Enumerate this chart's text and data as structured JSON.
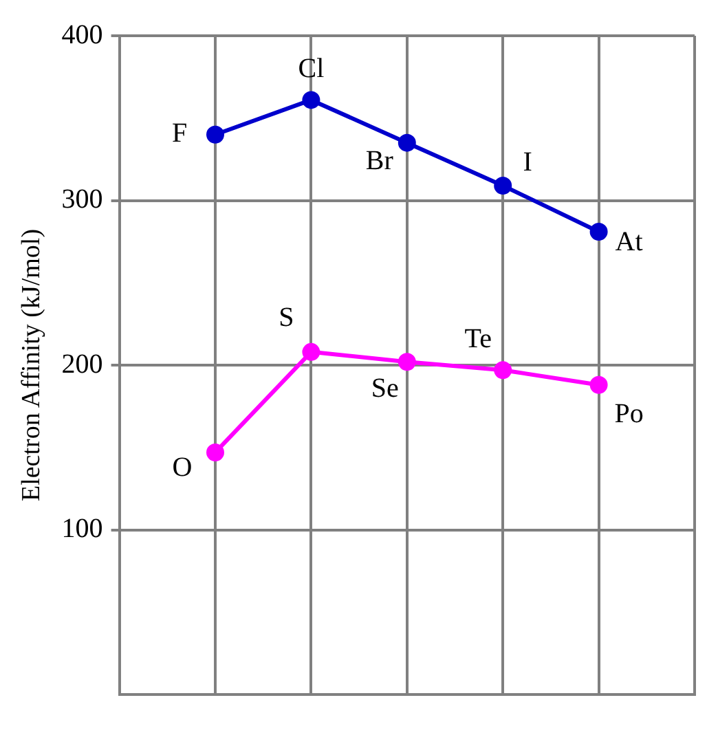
{
  "chart_data": {
    "type": "line",
    "ylabel": "Electron Affinity (kJ/mol)",
    "categories": [
      null,
      null,
      null,
      null,
      null,
      null,
      null
    ],
    "ylim": [
      0,
      400
    ],
    "yticks": [
      100,
      200,
      300,
      400
    ],
    "tick_labels": "y",
    "grid": true,
    "marker": "circle",
    "series": [
      {
        "color": "#0000cc",
        "values": [
          null,
          340,
          361,
          335,
          309,
          281,
          null
        ]
      },
      {
        "color": "#ff00ff",
        "values": [
          null,
          147,
          208,
          202,
          197,
          188,
          null
        ]
      }
    ],
    "annotations": [
      "F",
      "Cl",
      "Br",
      "I",
      "At",
      "O",
      "S",
      "Se",
      "Te",
      "Po"
    ]
  }
}
